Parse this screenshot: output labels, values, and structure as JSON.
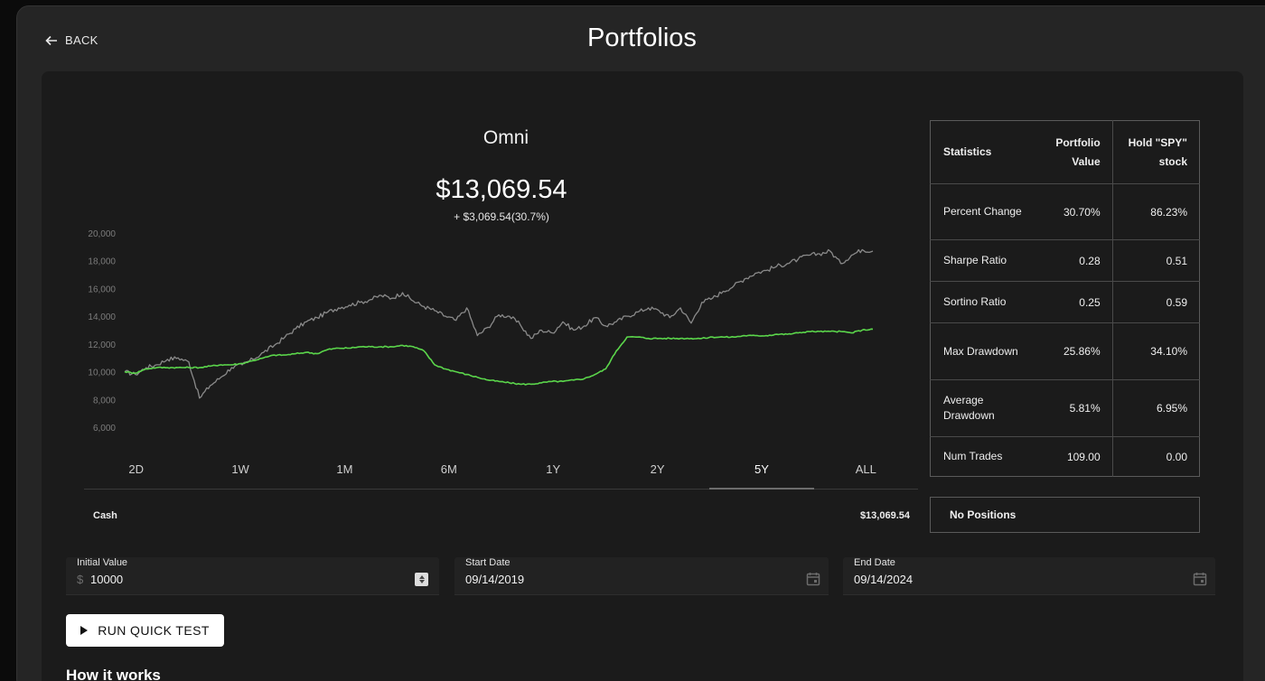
{
  "nav": {
    "back_label": "BACK",
    "page_title": "Portfolios"
  },
  "portfolio": {
    "name": "Omni",
    "value": "$13,069.54",
    "change": "+ $3,069.54(30.7%)"
  },
  "chart_data": {
    "type": "line",
    "y_ticks": [
      "20,000",
      "18,000",
      "16,000",
      "14,000",
      "12,000",
      "10,000",
      "8,000",
      "6,000"
    ],
    "ylim": [
      6000,
      20000
    ],
    "x": [
      0,
      1,
      2,
      3,
      4,
      5,
      6,
      7,
      8,
      9,
      10,
      11,
      12,
      13,
      14,
      15,
      16,
      17,
      18,
      19,
      20,
      21,
      22,
      23,
      24,
      25,
      26,
      27,
      28,
      29,
      30,
      31,
      32,
      33,
      34,
      35,
      36,
      37,
      38,
      39,
      40,
      41,
      42,
      43,
      44,
      45,
      46,
      47,
      48,
      49,
      50,
      51,
      52,
      53,
      54,
      55,
      56,
      57,
      58,
      59,
      60,
      61,
      62,
      63,
      64,
      65,
      66,
      67,
      68,
      69,
      70
    ],
    "grid": false,
    "series": [
      {
        "color": "#8a8a8a",
        "values": [
          10000,
          9800,
          10300,
          10500,
          10900,
          11000,
          10700,
          8100,
          9000,
          9600,
          10300,
          10500,
          10900,
          11400,
          11900,
          12500,
          13100,
          13600,
          13900,
          14300,
          14600,
          14800,
          15000,
          15200,
          15500,
          15300,
          15700,
          15100,
          14700,
          14400,
          14000,
          13700,
          14600,
          12600,
          13200,
          14100,
          14000,
          13400,
          12400,
          13000,
          12800,
          13600,
          13000,
          13300,
          13900,
          13300,
          13600,
          14000,
          14300,
          14600,
          14400,
          13900,
          14600,
          13500,
          15000,
          15300,
          15800,
          16200,
          16700,
          17100,
          17300,
          17600,
          17800,
          18100,
          18400,
          18500,
          18700,
          17800,
          18400,
          18800,
          18700
        ]
      },
      {
        "color": "#5bd64b",
        "values": [
          10000,
          9900,
          10200,
          10300,
          10300,
          10300,
          10300,
          10300,
          10400,
          10500,
          10500,
          10600,
          10800,
          11000,
          11200,
          11200,
          11300,
          11400,
          11300,
          11600,
          11700,
          11700,
          11800,
          11800,
          11800,
          11800,
          11900,
          11800,
          11500,
          10500,
          10200,
          10000,
          9800,
          9600,
          9400,
          9300,
          9200,
          9100,
          9100,
          9200,
          9300,
          9300,
          9400,
          9500,
          9800,
          10200,
          11500,
          12500,
          12500,
          12400,
          12400,
          12400,
          12400,
          12400,
          12400,
          12500,
          12500,
          12500,
          12600,
          12600,
          12600,
          12700,
          12700,
          12800,
          12900,
          12900,
          12900,
          12900,
          12800,
          13000,
          13070
        ]
      }
    ]
  },
  "ranges": {
    "items": [
      "2D",
      "1W",
      "1M",
      "6M",
      "1Y",
      "2Y",
      "5Y",
      "ALL"
    ],
    "active": "5Y"
  },
  "cash": {
    "label": "Cash",
    "value": "$13,069.54"
  },
  "statistics": {
    "headers": [
      "Statistics",
      "Portfolio Value",
      "Hold \"SPY\" stock"
    ],
    "rows": [
      [
        "Percent Change",
        "30.70%",
        "86.23%"
      ],
      [
        "Sharpe Ratio",
        "0.28",
        "0.51"
      ],
      [
        "Sortino Ratio",
        "0.25",
        "0.59"
      ],
      [
        "Max Drawdown",
        "25.86%",
        "34.10%"
      ],
      [
        "Average Drawdown",
        "5.81%",
        "6.95%"
      ],
      [
        "Num Trades",
        "109.00",
        "0.00"
      ]
    ]
  },
  "positions": {
    "label": "No Positions"
  },
  "inputs": {
    "initial_value": {
      "label": "Initial Value",
      "prefix": "$",
      "value": "10000"
    },
    "start_date": {
      "label": "Start Date",
      "value": "09/14/2019"
    },
    "end_date": {
      "label": "End Date",
      "value": "09/14/2024"
    }
  },
  "actions": {
    "run_label": "RUN QUICK TEST"
  },
  "sections": {
    "how_it_works": "How it works"
  }
}
